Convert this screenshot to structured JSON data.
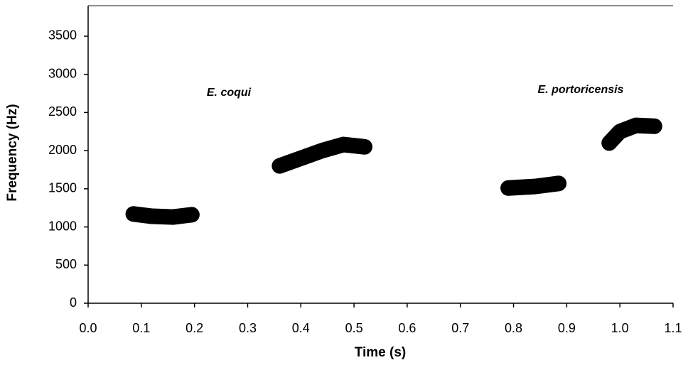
{
  "chart_data": {
    "type": "line",
    "xlabel": "Time (s)",
    "ylabel": "Frequency (Hz)",
    "annotations": [
      "E. coqui",
      "E. portoricensis"
    ],
    "series": [
      {
        "color": "#000000",
        "x": [
          0.085,
          0.12,
          0.16,
          0.195
        ],
        "values": [
          1170,
          1140,
          1130,
          1160
        ]
      },
      {
        "color": "#000000",
        "x": [
          0.36,
          0.4,
          0.44,
          0.48,
          0.52
        ],
        "values": [
          1800,
          1900,
          2000,
          2080,
          2050
        ]
      },
      {
        "color": "#000000",
        "x": [
          0.79,
          0.84,
          0.885
        ],
        "values": [
          1510,
          1530,
          1570
        ]
      },
      {
        "color": "#000000",
        "x": [
          0.98,
          1.0,
          1.03,
          1.065
        ],
        "values": [
          2100,
          2250,
          2330,
          2320
        ]
      }
    ],
    "xlim": [
      0,
      1.1
    ],
    "xticks": [
      {
        "value": 0,
        "label": "0.0"
      },
      0.1,
      0.2,
      0.3,
      0.4,
      0.5,
      0.6,
      0.7,
      0.8,
      0.9,
      {
        "value": 1,
        "label": "1.0"
      },
      1.1
    ],
    "ylim": [
      0,
      3900
    ],
    "yticks": [
      0,
      500,
      1000,
      1500,
      2000,
      2500,
      3000,
      3500
    ],
    "grid": false
  }
}
